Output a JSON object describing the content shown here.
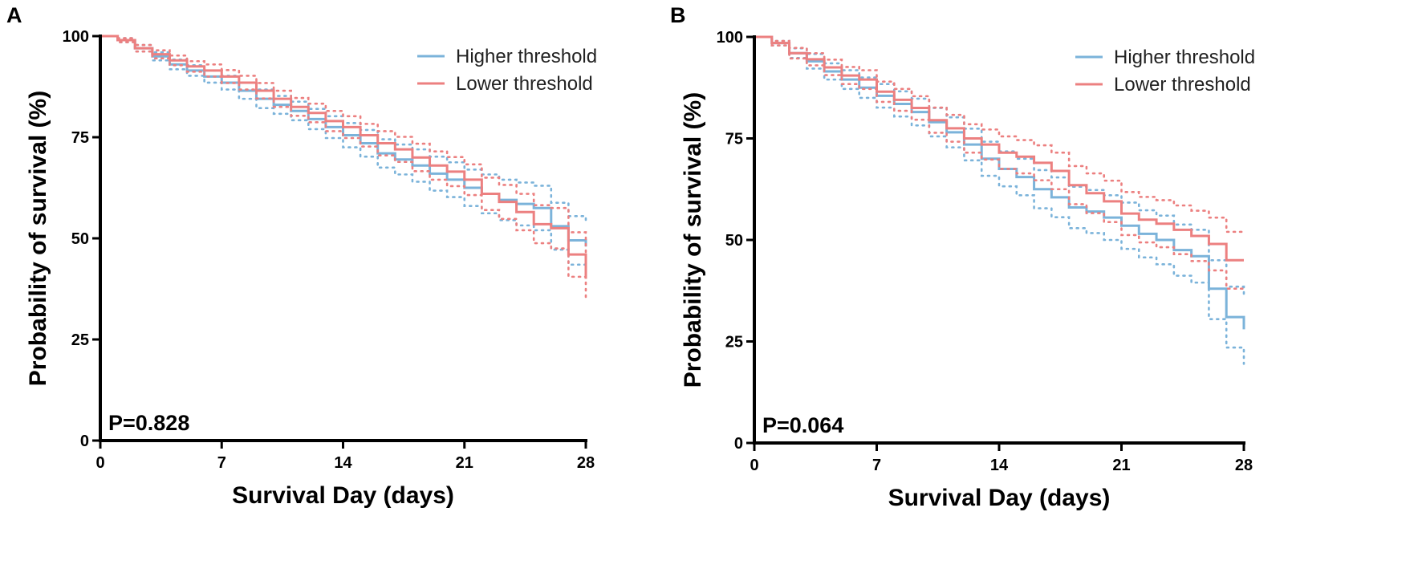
{
  "colors": {
    "higher": "#7bb3da",
    "lower": "#ec8080"
  },
  "chart_data": [
    {
      "panel": "A",
      "type": "line",
      "xlabel": "Survival Day (days)",
      "ylabel": "Probability of survival (%)",
      "xlim": [
        0,
        28
      ],
      "ylim": [
        0,
        100
      ],
      "xticks": [
        0,
        7,
        14,
        21,
        28
      ],
      "yticks": [
        0,
        25,
        50,
        75,
        100
      ],
      "xtick_labels": [
        "0",
        "7",
        "14",
        "21",
        "28"
      ],
      "ytick_labels": [
        "0",
        "25",
        "50",
        "75",
        "100"
      ],
      "annotation": "P=0.828",
      "legend": {
        "position": "top-right",
        "entries": [
          "Higher threshold",
          "Lower threshold"
        ]
      },
      "days": [
        0,
        1,
        2,
        3,
        4,
        5,
        6,
        7,
        8,
        9,
        10,
        11,
        12,
        13,
        14,
        15,
        16,
        17,
        18,
        19,
        20,
        21,
        22,
        23,
        24,
        25,
        26,
        27,
        28
      ],
      "series": [
        {
          "name": "Higher threshold",
          "color_key": "higher",
          "values": [
            100,
            99,
            97,
            95,
            93,
            91.5,
            90,
            88.5,
            86.5,
            84.5,
            83,
            81.5,
            79.5,
            77.5,
            75.5,
            73.5,
            71,
            69.5,
            68,
            66,
            64.5,
            62.5,
            61,
            59.5,
            58.5,
            57.5,
            53,
            49.5,
            48
          ],
          "ci_upper": [
            100,
            99.5,
            97.8,
            96,
            94.2,
            92.8,
            91.5,
            90.2,
            88.5,
            86.8,
            85.2,
            83.8,
            82,
            80.2,
            78.5,
            76.8,
            74.5,
            73.2,
            72,
            70.2,
            68.8,
            67,
            65.8,
            64.5,
            63.8,
            63,
            58.8,
            55.5,
            54.5
          ],
          "ci_lower": [
            100,
            98.5,
            96.2,
            94,
            91.8,
            90.2,
            88.5,
            86.8,
            84.5,
            82.2,
            80.8,
            79.2,
            77,
            74.8,
            72.5,
            70.2,
            67.5,
            65.8,
            64,
            61.8,
            60.2,
            58,
            56.2,
            54.5,
            53.2,
            52,
            47.2,
            43.5,
            41.5
          ]
        },
        {
          "name": "Lower threshold",
          "color_key": "lower",
          "values": [
            100,
            99,
            97,
            95.5,
            94,
            92.5,
            91.5,
            90,
            88.5,
            86.5,
            84.5,
            82.5,
            81,
            79,
            77.5,
            75.5,
            73.5,
            72,
            70,
            68,
            66.5,
            64.5,
            61,
            59,
            56.5,
            53.5,
            52.5,
            46,
            40
          ],
          "ci_upper": [
            100,
            99.5,
            97.8,
            96.5,
            95.2,
            93.8,
            93,
            91.6,
            90.2,
            88.4,
            86.5,
            84.7,
            83.3,
            81.5,
            80.2,
            78.3,
            76.5,
            75.1,
            73.4,
            71.5,
            70.1,
            68.3,
            65,
            63.2,
            61,
            58.2,
            57.5,
            51.5,
            46
          ],
          "ci_lower": [
            100,
            98.5,
            96.2,
            94.5,
            92.8,
            91.2,
            90,
            88.4,
            86.8,
            84.6,
            82.5,
            80.3,
            78.7,
            76.5,
            74.8,
            72.7,
            70.5,
            68.9,
            66.6,
            64.5,
            62.9,
            60.7,
            57,
            54.8,
            52,
            48.8,
            47.5,
            40.5,
            35
          ]
        }
      ]
    },
    {
      "panel": "B",
      "type": "line",
      "xlabel": "Survival Day (days)",
      "ylabel": "Probability of survival (%)",
      "xlim": [
        0,
        28
      ],
      "ylim": [
        0,
        100
      ],
      "xticks": [
        0,
        7,
        14,
        21,
        28
      ],
      "yticks": [
        0,
        25,
        50,
        75,
        100
      ],
      "xtick_labels": [
        "0",
        "7",
        "14",
        "21",
        "28"
      ],
      "ytick_labels": [
        "0",
        "25",
        "50",
        "75",
        "100"
      ],
      "annotation": "P=0.064",
      "legend": {
        "position": "top-right",
        "entries": [
          "Higher threshold",
          "Lower threshold"
        ]
      },
      "days": [
        0,
        1,
        2,
        3,
        4,
        5,
        6,
        7,
        8,
        9,
        10,
        11,
        12,
        13,
        14,
        15,
        16,
        17,
        18,
        19,
        20,
        21,
        22,
        23,
        24,
        25,
        26,
        27,
        28
      ],
      "series": [
        {
          "name": "Higher threshold",
          "color_key": "higher",
          "values": [
            100,
            98.5,
            96,
            94,
            91.5,
            89.5,
            87.5,
            85.5,
            83.5,
            81.5,
            79,
            76.5,
            73.5,
            70,
            67.5,
            65.5,
            62.5,
            60.5,
            58,
            57,
            55.5,
            53.5,
            51.5,
            50,
            47.5,
            46,
            38,
            31,
            28
          ],
          "ci_upper": [
            100,
            99,
            97.2,
            95.8,
            93.5,
            91.8,
            90,
            88.4,
            86.6,
            84.8,
            82.5,
            80.2,
            77.4,
            74.2,
            71.8,
            70,
            67.2,
            65.4,
            63.1,
            62.3,
            61,
            59.2,
            57.3,
            56,
            53.8,
            52.5,
            45,
            38.5,
            36.5
          ],
          "ci_lower": [
            100,
            97.9,
            94.8,
            92.2,
            89.5,
            87.2,
            85,
            82.6,
            80.4,
            78.2,
            75.5,
            72.8,
            69.6,
            65.8,
            63.2,
            61,
            57.8,
            55.6,
            52.9,
            51.7,
            50,
            47.8,
            45.7,
            44,
            41.2,
            39.5,
            30.5,
            23.5,
            19.5
          ]
        },
        {
          "name": "Lower threshold",
          "color_key": "lower",
          "values": [
            100,
            98.5,
            96,
            94.5,
            92.5,
            90.5,
            89.5,
            86.5,
            84.5,
            82.5,
            79.5,
            77.5,
            75,
            73.5,
            71.5,
            70.5,
            69,
            67,
            63.5,
            61.5,
            59.5,
            56.5,
            55,
            54,
            52.5,
            51,
            49,
            45,
            45
          ],
          "ci_upper": [
            100,
            99,
            97.3,
            96,
            94.4,
            92.6,
            91.8,
            89,
            87.2,
            85.4,
            82.6,
            80.8,
            78.5,
            77.2,
            75.5,
            74.6,
            73.3,
            71.5,
            68.2,
            66.4,
            64.6,
            61.8,
            60.6,
            59.8,
            58.5,
            57.2,
            55.5,
            52,
            52
          ],
          "ci_lower": [
            100,
            97.9,
            94.7,
            93,
            90.6,
            88.4,
            87.2,
            84,
            81.8,
            79.6,
            76.4,
            74.2,
            71.5,
            69.8,
            67.5,
            66.4,
            64.7,
            62.5,
            58.8,
            56.6,
            54.4,
            51.2,
            49.4,
            48.2,
            46.5,
            44.8,
            42.5,
            38,
            38
          ]
        }
      ]
    }
  ]
}
